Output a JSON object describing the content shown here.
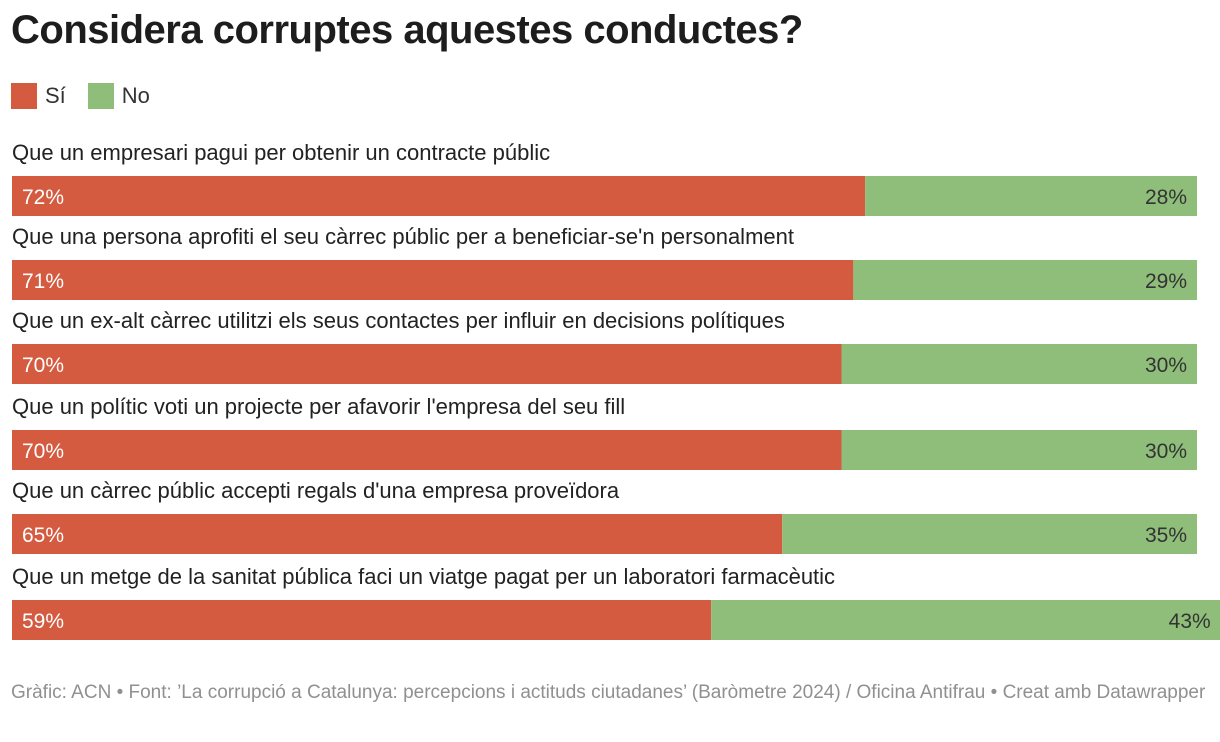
{
  "title": "Considera corruptes aquestes conductes?",
  "legend": [
    {
      "label": "Sí",
      "color": "#d45a40"
    },
    {
      "label": "No",
      "color": "#8fbe7b"
    }
  ],
  "chart_data": {
    "type": "bar",
    "orientation": "horizontal",
    "stacked": true,
    "categories": [
      "Que un empresari pagui per obtenir un contracte públic",
      "Que una persona aprofiti el seu càrrec públic per a beneficiar-se'n personalment",
      "Que un ex-alt càrrec utilitzi els seus contactes per influir en decisions polítiques",
      "Que un polític voti un projecte per afavorir l'empresa del seu fill",
      "Que un càrrec públic accepti regals d'una empresa proveïdora",
      "Que un metge de la sanitat pública faci un viatge pagat per un laboratori farmacèutic"
    ],
    "series": [
      {
        "name": "Sí",
        "color": "#d45a40",
        "values": [
          72,
          71,
          70,
          70,
          65,
          59
        ]
      },
      {
        "name": "No",
        "color": "#8fbe7b",
        "values": [
          28,
          29,
          30,
          30,
          35,
          43
        ]
      }
    ],
    "value_labels": [
      [
        "72%",
        "71%",
        "70%",
        "70%",
        "65%",
        "59%"
      ],
      [
        "28%",
        "29%",
        "30%",
        "30%",
        "35%",
        "43%"
      ]
    ],
    "title": "Considera corruptes aquestes conductes?",
    "legend_position": "top-left"
  },
  "footer": "Gràfic: ACN • Font: ’La corrupció a Catalunya: percepcions i actituds ciutadanes’ (Baròmetre 2024) / Oficina Antifrau • Creat amb Datawrapper"
}
